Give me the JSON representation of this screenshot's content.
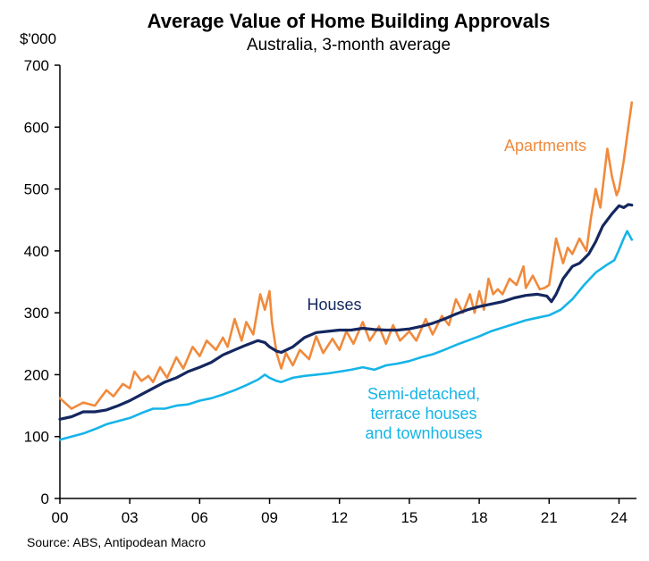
{
  "chart_data": {
    "type": "line",
    "title": "Average Value of Home Building Approvals",
    "subtitle": "Australia, 3-month average",
    "ylabel": "$'000",
    "xlabel": "",
    "source": "Source: ABS, Antipodean Macro",
    "ylim": [
      0,
      700
    ],
    "xlim": [
      2000,
      2024.75
    ],
    "yticks": [
      0,
      100,
      200,
      300,
      400,
      500,
      600,
      700
    ],
    "xticks": [
      {
        "value": 2000,
        "label": "00"
      },
      {
        "value": 2003,
        "label": "03"
      },
      {
        "value": 2006,
        "label": "06"
      },
      {
        "value": 2009,
        "label": "09"
      },
      {
        "value": 2012,
        "label": "12"
      },
      {
        "value": 2015,
        "label": "15"
      },
      {
        "value": 2018,
        "label": "18"
      },
      {
        "value": 2021,
        "label": "21"
      },
      {
        "value": 2024,
        "label": "24"
      }
    ],
    "series": [
      {
        "name": "Apartments",
        "label_lines": [
          "Apartments"
        ],
        "color": "#f08a3c",
        "points": [
          [
            2000.0,
            162
          ],
          [
            2000.5,
            145
          ],
          [
            2001.0,
            155
          ],
          [
            2001.5,
            150
          ],
          [
            2002.0,
            175
          ],
          [
            2002.3,
            165
          ],
          [
            2002.7,
            185
          ],
          [
            2003.0,
            178
          ],
          [
            2003.2,
            205
          ],
          [
            2003.5,
            190
          ],
          [
            2003.8,
            198
          ],
          [
            2004.0,
            188
          ],
          [
            2004.3,
            212
          ],
          [
            2004.6,
            195
          ],
          [
            2005.0,
            228
          ],
          [
            2005.3,
            210
          ],
          [
            2005.7,
            245
          ],
          [
            2006.0,
            230
          ],
          [
            2006.3,
            255
          ],
          [
            2006.7,
            240
          ],
          [
            2007.0,
            260
          ],
          [
            2007.2,
            245
          ],
          [
            2007.5,
            290
          ],
          [
            2007.8,
            255
          ],
          [
            2008.0,
            285
          ],
          [
            2008.3,
            265
          ],
          [
            2008.6,
            330
          ],
          [
            2008.8,
            305
          ],
          [
            2009.0,
            335
          ],
          [
            2009.1,
            285
          ],
          [
            2009.3,
            235
          ],
          [
            2009.5,
            210
          ],
          [
            2009.7,
            235
          ],
          [
            2010.0,
            215
          ],
          [
            2010.3,
            240
          ],
          [
            2010.7,
            225
          ],
          [
            2011.0,
            262
          ],
          [
            2011.3,
            235
          ],
          [
            2011.7,
            258
          ],
          [
            2012.0,
            240
          ],
          [
            2012.3,
            270
          ],
          [
            2012.6,
            250
          ],
          [
            2013.0,
            285
          ],
          [
            2013.3,
            255
          ],
          [
            2013.7,
            278
          ],
          [
            2014.0,
            250
          ],
          [
            2014.3,
            280
          ],
          [
            2014.6,
            255
          ],
          [
            2015.0,
            270
          ],
          [
            2015.3,
            255
          ],
          [
            2015.7,
            290
          ],
          [
            2016.0,
            265
          ],
          [
            2016.4,
            295
          ],
          [
            2016.7,
            280
          ],
          [
            2017.0,
            322
          ],
          [
            2017.3,
            300
          ],
          [
            2017.6,
            330
          ],
          [
            2017.8,
            300
          ],
          [
            2018.0,
            335
          ],
          [
            2018.2,
            305
          ],
          [
            2018.4,
            355
          ],
          [
            2018.6,
            330
          ],
          [
            2018.8,
            338
          ],
          [
            2019.0,
            330
          ],
          [
            2019.3,
            355
          ],
          [
            2019.6,
            345
          ],
          [
            2019.9,
            375
          ],
          [
            2020.0,
            340
          ],
          [
            2020.3,
            360
          ],
          [
            2020.6,
            338
          ],
          [
            2020.8,
            340
          ],
          [
            2021.0,
            345
          ],
          [
            2021.3,
            420
          ],
          [
            2021.6,
            380
          ],
          [
            2021.8,
            405
          ],
          [
            2022.0,
            395
          ],
          [
            2022.3,
            420
          ],
          [
            2022.6,
            400
          ],
          [
            2022.8,
            455
          ],
          [
            2023.0,
            500
          ],
          [
            2023.2,
            470
          ],
          [
            2023.5,
            565
          ],
          [
            2023.7,
            520
          ],
          [
            2023.9,
            490
          ],
          [
            2024.0,
            500
          ],
          [
            2024.2,
            545
          ],
          [
            2024.4,
            600
          ],
          [
            2024.55,
            640
          ]
        ]
      },
      {
        "name": "Houses",
        "label_lines": [
          "Houses"
        ],
        "color": "#14275f",
        "points": [
          [
            2000.0,
            128
          ],
          [
            2000.5,
            132
          ],
          [
            2001.0,
            140
          ],
          [
            2001.5,
            140
          ],
          [
            2002.0,
            143
          ],
          [
            2002.5,
            150
          ],
          [
            2003.0,
            158
          ],
          [
            2003.5,
            168
          ],
          [
            2004.0,
            178
          ],
          [
            2004.5,
            188
          ],
          [
            2005.0,
            195
          ],
          [
            2005.5,
            205
          ],
          [
            2006.0,
            212
          ],
          [
            2006.5,
            220
          ],
          [
            2007.0,
            232
          ],
          [
            2007.5,
            240
          ],
          [
            2008.0,
            248
          ],
          [
            2008.5,
            255
          ],
          [
            2008.8,
            252
          ],
          [
            2009.0,
            245
          ],
          [
            2009.3,
            238
          ],
          [
            2009.5,
            236
          ],
          [
            2010.0,
            245
          ],
          [
            2010.5,
            260
          ],
          [
            2011.0,
            268
          ],
          [
            2011.5,
            270
          ],
          [
            2012.0,
            272
          ],
          [
            2012.5,
            272
          ],
          [
            2013.0,
            275
          ],
          [
            2013.5,
            273
          ],
          [
            2014.0,
            272
          ],
          [
            2014.5,
            272
          ],
          [
            2015.0,
            274
          ],
          [
            2015.5,
            278
          ],
          [
            2016.0,
            283
          ],
          [
            2016.5,
            290
          ],
          [
            2017.0,
            298
          ],
          [
            2017.5,
            305
          ],
          [
            2018.0,
            310
          ],
          [
            2018.5,
            314
          ],
          [
            2019.0,
            318
          ],
          [
            2019.5,
            324
          ],
          [
            2020.0,
            328
          ],
          [
            2020.5,
            330
          ],
          [
            2020.9,
            327
          ],
          [
            2021.1,
            318
          ],
          [
            2021.3,
            330
          ],
          [
            2021.6,
            355
          ],
          [
            2022.0,
            375
          ],
          [
            2022.3,
            380
          ],
          [
            2022.7,
            395
          ],
          [
            2023.0,
            415
          ],
          [
            2023.3,
            440
          ],
          [
            2023.7,
            460
          ],
          [
            2024.0,
            473
          ],
          [
            2024.2,
            470
          ],
          [
            2024.4,
            475
          ],
          [
            2024.55,
            474
          ]
        ]
      },
      {
        "name": "Semi-detached, terrace houses and townhouses",
        "label_lines": [
          "Semi-detached,",
          "terrace houses",
          "and townhouses"
        ],
        "color": "#15b4e8",
        "points": [
          [
            2000.0,
            95
          ],
          [
            2000.5,
            100
          ],
          [
            2001.0,
            105
          ],
          [
            2001.5,
            112
          ],
          [
            2002.0,
            120
          ],
          [
            2002.5,
            125
          ],
          [
            2003.0,
            130
          ],
          [
            2003.5,
            138
          ],
          [
            2004.0,
            145
          ],
          [
            2004.5,
            145
          ],
          [
            2005.0,
            150
          ],
          [
            2005.5,
            152
          ],
          [
            2006.0,
            158
          ],
          [
            2006.5,
            162
          ],
          [
            2007.0,
            168
          ],
          [
            2007.5,
            175
          ],
          [
            2008.0,
            183
          ],
          [
            2008.5,
            192
          ],
          [
            2008.8,
            200
          ],
          [
            2009.0,
            195
          ],
          [
            2009.3,
            190
          ],
          [
            2009.5,
            188
          ],
          [
            2010.0,
            195
          ],
          [
            2010.5,
            198
          ],
          [
            2011.0,
            200
          ],
          [
            2011.5,
            202
          ],
          [
            2012.0,
            205
          ],
          [
            2012.5,
            208
          ],
          [
            2013.0,
            212
          ],
          [
            2013.5,
            208
          ],
          [
            2014.0,
            215
          ],
          [
            2014.5,
            218
          ],
          [
            2015.0,
            222
          ],
          [
            2015.5,
            228
          ],
          [
            2016.0,
            233
          ],
          [
            2016.5,
            240
          ],
          [
            2017.0,
            248
          ],
          [
            2017.5,
            255
          ],
          [
            2018.0,
            262
          ],
          [
            2018.5,
            270
          ],
          [
            2019.0,
            276
          ],
          [
            2019.5,
            282
          ],
          [
            2020.0,
            288
          ],
          [
            2020.5,
            292
          ],
          [
            2021.0,
            296
          ],
          [
            2021.5,
            305
          ],
          [
            2022.0,
            322
          ],
          [
            2022.5,
            345
          ],
          [
            2023.0,
            365
          ],
          [
            2023.5,
            378
          ],
          [
            2023.8,
            385
          ],
          [
            2024.0,
            402
          ],
          [
            2024.2,
            420
          ],
          [
            2024.35,
            432
          ],
          [
            2024.55,
            418
          ]
        ]
      }
    ]
  }
}
